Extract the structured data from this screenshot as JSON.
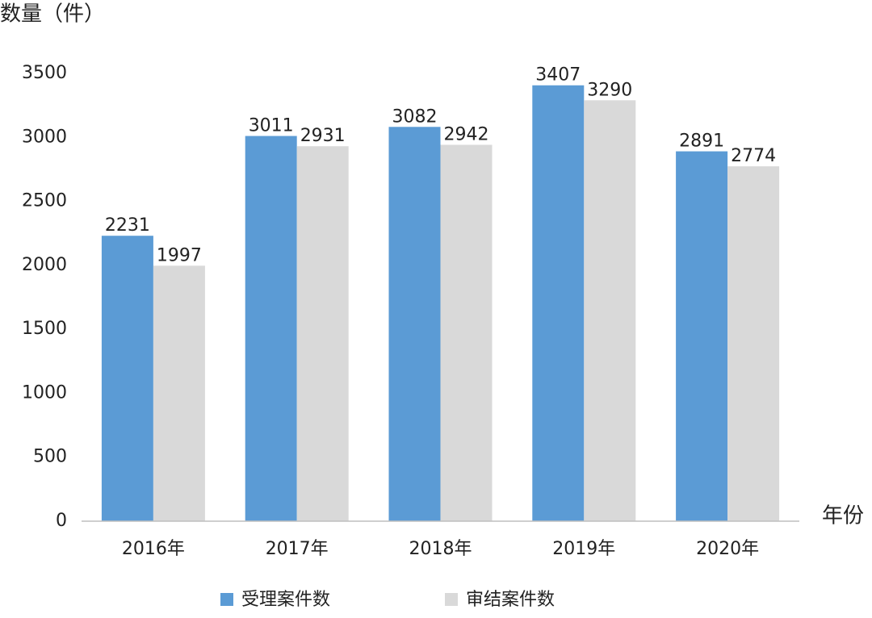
{
  "chart_data": {
    "type": "bar",
    "y_label": "数量（件）",
    "x_label": "年份",
    "categories": [
      "2016年",
      "2017年",
      "2018年",
      "2019年",
      "2020年"
    ],
    "series": [
      {
        "name": "受理案件数",
        "color": "#5b9bd5",
        "values": [
          2231,
          3011,
          3082,
          3407,
          2891
        ]
      },
      {
        "name": "审结案件数",
        "color": "#d9d9d9",
        "values": [
          1997,
          2931,
          2942,
          3290,
          2774
        ]
      }
    ],
    "ylim": [
      0,
      3500
    ],
    "yticks": [
      0,
      500,
      1000,
      1500,
      2000,
      2500,
      3000,
      3500
    ],
    "grid": false
  }
}
